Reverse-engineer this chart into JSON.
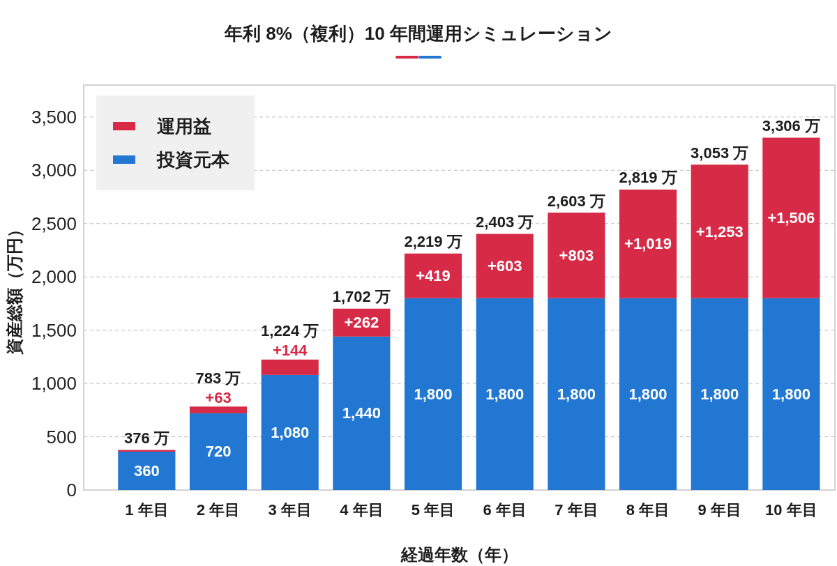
{
  "chart_data": {
    "type": "bar",
    "title": "年利 8%（複利）10 年間運用シミュレーション",
    "xlabel": "経過年数（年）",
    "ylabel": "資産総額（万円）",
    "categories": [
      "1 年目",
      "2 年目",
      "3 年目",
      "4 年目",
      "5 年目",
      "6 年目",
      "7 年目",
      "8 年目",
      "9 年目",
      "10 年目"
    ],
    "series": [
      {
        "name": "投資元本",
        "color": "#2177d2",
        "values": [
          360,
          720,
          1080,
          1440,
          1800,
          1800,
          1800,
          1800,
          1800,
          1800
        ],
        "value_labels": [
          "360",
          "720",
          "1,080",
          "1,440",
          "1,800",
          "1,800",
          "1,800",
          "1,800",
          "1,800",
          "1,800"
        ]
      },
      {
        "name": "運用益",
        "color": "#d62a46",
        "values": [
          16,
          63,
          144,
          262,
          419,
          603,
          803,
          1019,
          1253,
          1506
        ],
        "value_labels": [
          null,
          "+63",
          "+144",
          "+262",
          "+419",
          "+603",
          "+803",
          "+1,019",
          "+1,253",
          "+1,506"
        ]
      }
    ],
    "stacked": true,
    "totals": [
      "376 万",
      "783 万",
      "1,224 万",
      "1,702 万",
      "2,219 万",
      "2,403 万",
      "2,603 万",
      "2,819 万",
      "3,053 万",
      "3,306 万"
    ],
    "ylim": [
      0,
      3800
    ],
    "yticks": [
      0,
      500,
      {
        "value": 1000,
        "label": "1,000"
      },
      {
        "value": 1500,
        "label": "1,500"
      },
      {
        "value": 2000,
        "label": "2,000"
      },
      {
        "value": 2500,
        "label": "2,500"
      },
      {
        "value": 3000,
        "label": "3,000"
      },
      {
        "value": 3500,
        "label": "3,500"
      }
    ],
    "grid": "y",
    "legend": "top left"
  }
}
